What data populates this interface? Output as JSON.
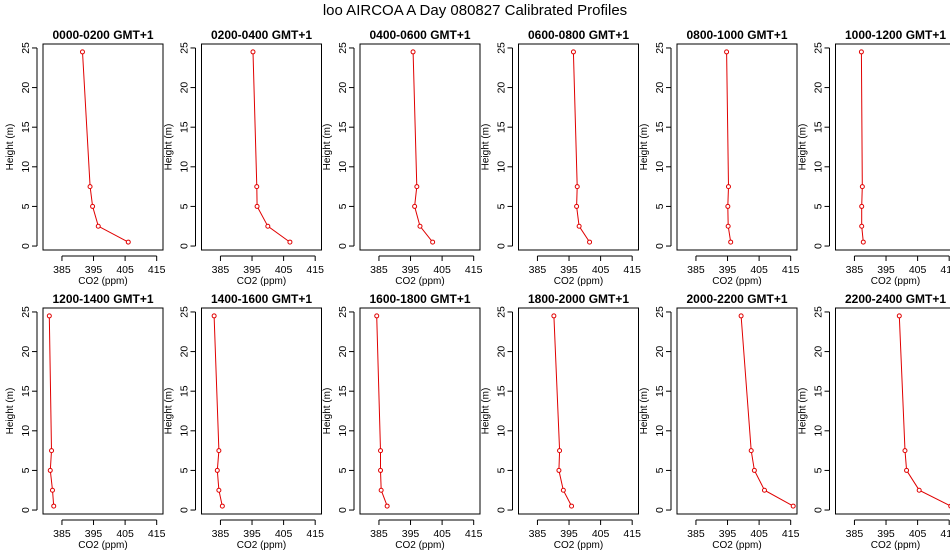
{
  "title": "loo AIRCOA A  Day 080827  Calibrated Profiles",
  "colors": {
    "profile": "#e00000",
    "axis": "#000000",
    "background": "#ffffff"
  },
  "chart_data": {
    "type": "line",
    "layout": "2 rows x 6 panels",
    "xlabel": "CO2 (ppm)",
    "ylabel": "Height (m)",
    "xlim": [
      379,
      417
    ],
    "ylim": [
      -0.5,
      25.5
    ],
    "xticks": [
      385,
      395,
      405,
      415
    ],
    "yticks": [
      0,
      5,
      10,
      15,
      20,
      25
    ],
    "heights": [
      0.5,
      2.5,
      5,
      7.5,
      24.5
    ],
    "grid": false,
    "panels": [
      {
        "title": "0000-0200 GMT+1",
        "co2": [
          406,
          396.5,
          394.7,
          393.9,
          391.5
        ]
      },
      {
        "title": "0200-0400 GMT+1",
        "co2": [
          407,
          400,
          396.6,
          396.5,
          395.3
        ]
      },
      {
        "title": "0400-0600 GMT+1",
        "co2": [
          402,
          398,
          396.3,
          397,
          395.8
        ]
      },
      {
        "title": "0600-0800 GMT+1",
        "co2": [
          401.5,
          398.2,
          397.4,
          397.6,
          396.4
        ]
      },
      {
        "title": "0800-1000 GMT+1",
        "co2": [
          396,
          395.2,
          395.1,
          395.3,
          394.7
        ]
      },
      {
        "title": "1000-1200 GMT+1",
        "co2": [
          387.8,
          387.3,
          387.3,
          387.5,
          387.2
        ]
      },
      {
        "title": "1200-1400 GMT+1",
        "co2": [
          382.4,
          382,
          381.3,
          381.7,
          381
        ]
      },
      {
        "title": "1400-1600 GMT+1",
        "co2": [
          385.6,
          384.5,
          384,
          384.5,
          383
        ]
      },
      {
        "title": "1600-1800 GMT+1",
        "co2": [
          387.6,
          385.7,
          385.5,
          385.5,
          384.3
        ]
      },
      {
        "title": "1800-2000 GMT+1",
        "co2": [
          395.8,
          393.2,
          391.8,
          392,
          390.2
        ]
      },
      {
        "title": "2000-2200 GMT+1",
        "co2": [
          415.8,
          406.7,
          403.5,
          402.5,
          399.3
        ]
      },
      {
        "title": "2200-2400 GMT+1",
        "co2": [
          415.5,
          405.5,
          401.5,
          401,
          399.2
        ]
      }
    ]
  }
}
